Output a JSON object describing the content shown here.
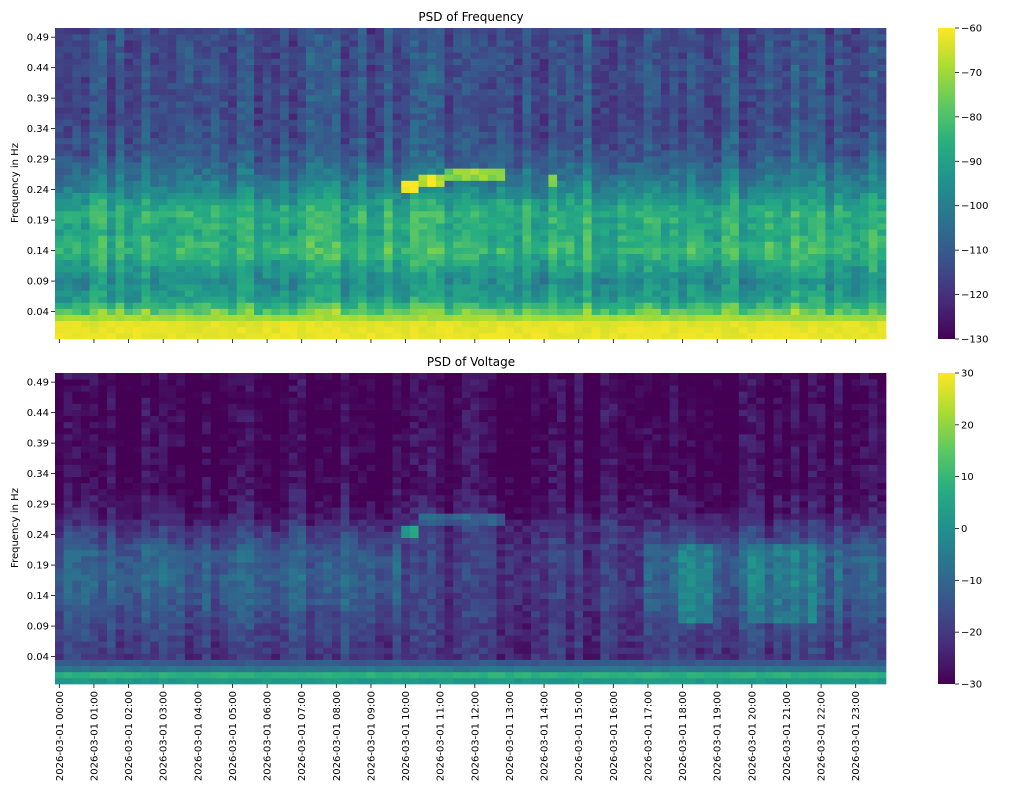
{
  "figure": {
    "x_tick_labels": [
      "2026-03-01 00:00",
      "2026-03-01 01:00",
      "2026-03-01 02:00",
      "2026-03-01 03:00",
      "2026-03-01 04:00",
      "2026-03-01 05:00",
      "2026-03-01 06:00",
      "2026-03-01 07:00",
      "2026-03-01 08:00",
      "2026-03-01 09:00",
      "2026-03-01 10:00",
      "2026-03-01 11:00",
      "2026-03-01 12:00",
      "2026-03-01 13:00",
      "2026-03-01 14:00",
      "2026-03-01 15:00",
      "2026-03-01 16:00",
      "2026-03-01 17:00",
      "2026-03-01 18:00",
      "2026-03-01 19:00",
      "2026-03-01 20:00",
      "2026-03-01 21:00",
      "2026-03-01 22:00",
      "2026-03-01 23:00"
    ]
  },
  "chart_data": [
    {
      "type": "heatmap",
      "title": "PSD of Frequency",
      "ylabel": "Frequency in Hz",
      "xlabel": "",
      "y_tick_labels": [
        "0.49",
        "0.44",
        "0.39",
        "0.34",
        "0.29",
        "0.24",
        "0.19",
        "0.14",
        "0.09",
        "0.04"
      ],
      "x_tick_labels": [
        "2026-03-01 00:00",
        "2026-03-01 01:00",
        "2026-03-01 02:00",
        "2026-03-01 03:00",
        "2026-03-01 04:00",
        "2026-03-01 05:00",
        "2026-03-01 06:00",
        "2026-03-01 07:00",
        "2026-03-01 08:00",
        "2026-03-01 09:00",
        "2026-03-01 10:00",
        "2026-03-01 11:00",
        "2026-03-01 12:00",
        "2026-03-01 13:00",
        "2026-03-01 14:00",
        "2026-03-01 15:00",
        "2026-03-01 16:00",
        "2026-03-01 17:00",
        "2026-03-01 18:00",
        "2026-03-01 19:00",
        "2026-03-01 20:00",
        "2026-03-01 21:00",
        "2026-03-01 22:00",
        "2026-03-01 23:00"
      ],
      "x_tick_labels_shown": false,
      "colormap": "viridis",
      "colorbar": {
        "min": -130,
        "max": -60,
        "ticks": [
          -60,
          -70,
          -80,
          -90,
          -100,
          -110,
          -120,
          -130
        ],
        "tick_labels": [
          "−60",
          "−70",
          "−80",
          "−90",
          "−100",
          "−110",
          "−120",
          "−130"
        ]
      },
      "time_bins_per_hour": 4,
      "frequency_bins": 51,
      "grid": false,
      "band_profile_db": [
        {
          "freq": 0.0,
          "value": -62
        },
        {
          "freq": 0.02,
          "value": -63
        },
        {
          "freq": 0.04,
          "value": -76
        },
        {
          "freq": 0.06,
          "value": -90
        },
        {
          "freq": 0.09,
          "value": -95
        },
        {
          "freq": 0.12,
          "value": -88
        },
        {
          "freq": 0.14,
          "value": -82
        },
        {
          "freq": 0.17,
          "value": -87
        },
        {
          "freq": 0.2,
          "value": -85
        },
        {
          "freq": 0.22,
          "value": -90
        },
        {
          "freq": 0.24,
          "value": -97
        },
        {
          "freq": 0.27,
          "value": -104
        },
        {
          "freq": 0.3,
          "value": -110
        },
        {
          "freq": 0.35,
          "value": -113
        },
        {
          "freq": 0.42,
          "value": -112
        },
        {
          "freq": 0.49,
          "value": -113
        }
      ],
      "features_db": [
        {
          "label": "narrowband line",
          "freq_range": [
            0.24,
            0.25
          ],
          "time_range": [
            "10:00",
            "10:30"
          ],
          "value": -60
        },
        {
          "label": "narrowband line",
          "freq_range": [
            0.25,
            0.26
          ],
          "time_range": [
            "10:30",
            "11:15"
          ],
          "value": -68
        },
        {
          "label": "narrowband line",
          "freq_range": [
            0.26,
            0.27
          ],
          "time_range": [
            "11:15",
            "13:00"
          ],
          "value": -72
        },
        {
          "label": "narrowband line",
          "freq_range": [
            0.25,
            0.26
          ],
          "time_range": [
            "14:15",
            "14:30"
          ],
          "value": -72
        }
      ]
    },
    {
      "type": "heatmap",
      "title": "PSD of Voltage",
      "ylabel": "Frequency in Hz",
      "xlabel": "",
      "y_tick_labels": [
        "0.49",
        "0.44",
        "0.39",
        "0.34",
        "0.29",
        "0.24",
        "0.19",
        "0.14",
        "0.09",
        "0.04"
      ],
      "x_tick_labels": [
        "2026-03-01 00:00",
        "2026-03-01 01:00",
        "2026-03-01 02:00",
        "2026-03-01 03:00",
        "2026-03-01 04:00",
        "2026-03-01 05:00",
        "2026-03-01 06:00",
        "2026-03-01 07:00",
        "2026-03-01 08:00",
        "2026-03-01 09:00",
        "2026-03-01 10:00",
        "2026-03-01 11:00",
        "2026-03-01 12:00",
        "2026-03-01 13:00",
        "2026-03-01 14:00",
        "2026-03-01 15:00",
        "2026-03-01 16:00",
        "2026-03-01 17:00",
        "2026-03-01 18:00",
        "2026-03-01 19:00",
        "2026-03-01 20:00",
        "2026-03-01 21:00",
        "2026-03-01 22:00",
        "2026-03-01 23:00"
      ],
      "x_tick_labels_shown": true,
      "colormap": "viridis",
      "colorbar": {
        "min": -30,
        "max": 30,
        "ticks": [
          30,
          20,
          10,
          0,
          -10,
          -20,
          -30
        ],
        "tick_labels": [
          "30",
          "20",
          "10",
          "0",
          "−10",
          "−20",
          "−30"
        ]
      },
      "time_bins_per_hour": 4,
      "frequency_bins": 51,
      "grid": false,
      "band_profile_db": [
        {
          "freq": 0.0,
          "value": 2
        },
        {
          "freq": 0.01,
          "value": 8
        },
        {
          "freq": 0.02,
          "value": -6
        },
        {
          "freq": 0.04,
          "value": -20
        },
        {
          "freq": 0.09,
          "value": -17
        },
        {
          "freq": 0.14,
          "value": -12
        },
        {
          "freq": 0.17,
          "value": -11
        },
        {
          "freq": 0.21,
          "value": -12
        },
        {
          "freq": 0.24,
          "value": -18
        },
        {
          "freq": 0.27,
          "value": -25
        },
        {
          "freq": 0.32,
          "value": -29
        },
        {
          "freq": 0.49,
          "value": -30
        }
      ],
      "features_db": [
        {
          "label": "daytime dip",
          "freq_range": [
            0.04,
            0.26
          ],
          "time_range": [
            "10:00",
            "17:00"
          ],
          "value": -22
        },
        {
          "label": "evening rise",
          "freq_range": [
            0.1,
            0.22
          ],
          "time_range": [
            "18:00",
            "19:00"
          ],
          "value": 0
        },
        {
          "label": "evening rise",
          "freq_range": [
            0.1,
            0.22
          ],
          "time_range": [
            "20:00",
            "22:00"
          ],
          "value": -4
        },
        {
          "label": "narrowband line",
          "freq_range": [
            0.24,
            0.25
          ],
          "time_range": [
            "10:00",
            "10:30"
          ],
          "value": 0
        },
        {
          "label": "narrowband line",
          "freq_range": [
            0.26,
            0.27
          ],
          "time_range": [
            "10:30",
            "13:00"
          ],
          "value": -13
        }
      ]
    }
  ]
}
